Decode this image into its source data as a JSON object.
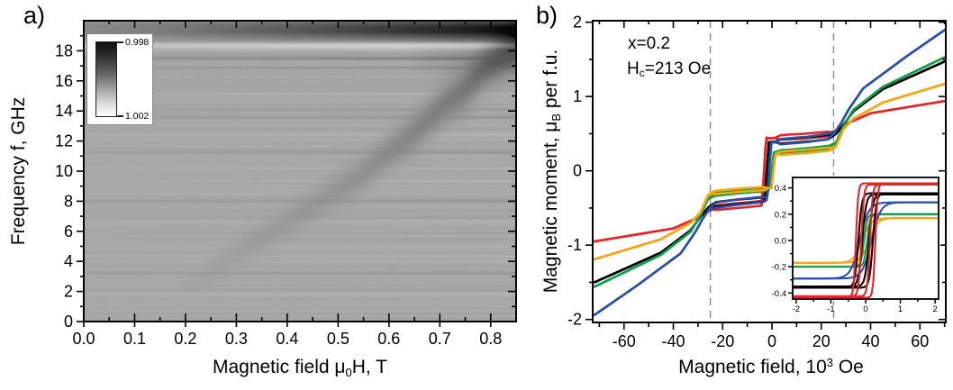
{
  "figure": {
    "background": "#ffffff"
  },
  "chart_data": [
    {
      "id": "fmr-absorption-map",
      "type": "heatmap",
      "panel_label": "a)",
      "x_title": {
        "prefix": "Magnetic field μ",
        "sub": "0",
        "suffix": "H, T"
      },
      "y_title": "Frequency f, GHz",
      "x_range": [
        0,
        0.85
      ],
      "y_range": [
        0,
        20
      ],
      "x_ticks": {
        "values": [
          0,
          0.1,
          0.2,
          0.3,
          0.4,
          0.5,
          0.6,
          0.7,
          0.8
        ],
        "labels": [
          "0.0",
          "0.1",
          "0.2",
          "0.3",
          "0.4",
          "0.5",
          "0.6",
          "0.7",
          "0.8"
        ],
        "minor_step": 0.05
      },
      "y_ticks": {
        "values": [
          0,
          2,
          4,
          6,
          8,
          10,
          12,
          14,
          16,
          18
        ],
        "labels": [
          "0",
          "2",
          "4",
          "6",
          "8",
          "10",
          "12",
          "14",
          "16",
          "18"
        ],
        "minor_step": 1
      },
      "colorbar": {
        "top_label": "0.998",
        "bottom_label": "1.002",
        "dark_color": "#101010",
        "light_color": "#ffffff"
      },
      "base_gray": 168,
      "resonance_band": {
        "points_H_f": [
          [
            0.16,
            1.6
          ],
          [
            0.24,
            3.2
          ],
          [
            0.29,
            4.3
          ],
          [
            0.35,
            5.6
          ],
          [
            0.41,
            6.9
          ],
          [
            0.47,
            8.2
          ],
          [
            0.53,
            9.4
          ],
          [
            0.61,
            11.6
          ],
          [
            0.66,
            12.9
          ],
          [
            0.7,
            14.2
          ],
          [
            0.75,
            15.5
          ],
          [
            0.79,
            16.9
          ],
          [
            0.85,
            18.4
          ]
        ],
        "amplitude": [
          [
            0.18,
            0
          ],
          [
            0.28,
            9
          ],
          [
            0.38,
            13
          ],
          [
            0.48,
            18
          ],
          [
            0.58,
            27
          ],
          [
            0.68,
            38
          ],
          [
            0.78,
            48
          ],
          [
            0.85,
            52
          ]
        ],
        "sigma_ghz": [
          [
            0.2,
            0.55
          ],
          [
            0.5,
            0.75
          ],
          [
            0.85,
            0.95
          ]
        ]
      },
      "top_band": {
        "f_center": 19.45,
        "sigma_ghz": 0.5,
        "max_dark": 150
      },
      "right_merge": {
        "f_center": 17.5,
        "sigma_ghz": 0.8,
        "x_start": 0.74,
        "amp": 34
      },
      "named_stripes": [
        {
          "f": 18.4,
          "amp": 55,
          "sigma": 0.13
        },
        {
          "f": 18.15,
          "amp": 16,
          "sigma": 0.1
        },
        {
          "f": 17.55,
          "amp": -24,
          "sigma": 0.09
        },
        {
          "f": 16.95,
          "amp": -14,
          "sigma": 0.08
        },
        {
          "f": 16.3,
          "amp": 10,
          "sigma": 0.08
        },
        {
          "f": 15.15,
          "amp": 12,
          "sigma": 0.08
        },
        {
          "f": 14.1,
          "amp": -10,
          "sigma": 0.07
        },
        {
          "f": 13.6,
          "amp": -12,
          "sigma": 0.08
        },
        {
          "f": 12.45,
          "amp": 14,
          "sigma": 0.08
        },
        {
          "f": 11.3,
          "amp": -15,
          "sigma": 0.08
        },
        {
          "f": 10.2,
          "amp": 8,
          "sigma": 0.07
        },
        {
          "f": 9.35,
          "amp": 10,
          "sigma": 0.07
        },
        {
          "f": 8.05,
          "amp": -11,
          "sigma": 0.07
        },
        {
          "f": 6.7,
          "amp": 6,
          "sigma": 0.07
        },
        {
          "f": 5.5,
          "amp": -9,
          "sigma": 0.07
        },
        {
          "f": 4.4,
          "amp": 5,
          "sigma": 0.06
        },
        {
          "f": 3.25,
          "amp": -13,
          "sigma": 0.07
        },
        {
          "f": 2.2,
          "amp": -6,
          "sigma": 0.06
        }
      ],
      "noise": {
        "seed": 7,
        "row_amp": 5,
        "strong_prob": 0.18,
        "strong_amp": 14
      }
    },
    {
      "id": "hysteresis-loops",
      "type": "line",
      "panel_label": "b)",
      "x_title": {
        "prefix": "Magnetic field, 10",
        "sup": "3",
        "suffix": " Oe"
      },
      "y_title": {
        "prefix": "Magnetic moment, μ",
        "sub": "B",
        "suffix": " per f.u."
      },
      "annotations": [
        {
          "text": "x=0.2"
        },
        {
          "prefix": "H",
          "sub": "c",
          "suffix": "=213 Oe"
        }
      ],
      "x_range": [
        -72.7,
        70.5
      ],
      "y_range": [
        -2.04,
        2.02
      ],
      "x_ticks": {
        "values": [
          -60,
          -40,
          -20,
          0,
          20,
          40,
          60
        ],
        "labels": [
          "-60",
          "-40",
          "-20",
          "0",
          "20",
          "40",
          "60"
        ],
        "minor_step": 10
      },
      "y_ticks": {
        "values": [
          -2,
          -1,
          0,
          1,
          2
        ],
        "labels": [
          "-2",
          "-1",
          "0",
          "1",
          "2"
        ],
        "minor_step": 0.5
      },
      "dashed_lines_x": [
        -25,
        25
      ],
      "dashed_color": "#8a8a8a",
      "series": [
        {
          "name": "red",
          "color": "#e4232a",
          "opening": 0.032,
          "knots": [
            [
              -72,
              -0.95
            ],
            [
              -40,
              -0.775
            ],
            [
              -30,
              -0.63
            ],
            [
              -27,
              -0.56
            ],
            [
              -24,
              -0.5
            ],
            [
              -15,
              -0.47
            ],
            [
              -8,
              -0.45
            ],
            [
              -4.0,
              -0.435
            ],
            [
              -2.4,
              0.435
            ],
            [
              4,
              0.45
            ],
            [
              12,
              0.465
            ],
            [
              20,
              0.487
            ],
            [
              24,
              0.5
            ],
            [
              27,
              0.56
            ],
            [
              30,
              0.63
            ],
            [
              40,
              0.775
            ],
            [
              72,
              0.95
            ]
          ]
        },
        {
          "name": "black",
          "color": "#000000",
          "opening": 0.03,
          "knots": [
            [
              -72,
              -1.5
            ],
            [
              -45,
              -1.1
            ],
            [
              -33,
              -0.8
            ],
            [
              -29,
              -0.62
            ],
            [
              -26,
              -0.5
            ],
            [
              -23,
              -0.452
            ],
            [
              -15,
              -0.42
            ],
            [
              -8,
              -0.4
            ],
            [
              -2.9,
              -0.385
            ],
            [
              -1.3,
              0.385
            ],
            [
              5,
              0.4
            ],
            [
              15,
              0.425
            ],
            [
              23,
              0.455
            ],
            [
              26,
              0.5
            ],
            [
              29,
              0.62
            ],
            [
              33,
              0.8
            ],
            [
              45,
              1.1
            ],
            [
              72,
              1.5
            ]
          ]
        },
        {
          "name": "green",
          "color": "#0fa04a",
          "opening": 0.022,
          "knots": [
            [
              -72,
              -1.56
            ],
            [
              -45,
              -1.13
            ],
            [
              -33,
              -0.82
            ],
            [
              -29,
              -0.6
            ],
            [
              -26,
              -0.38
            ],
            [
              -23,
              -0.315
            ],
            [
              -15,
              -0.285
            ],
            [
              -8,
              -0.265
            ],
            [
              -0.9,
              -0.25
            ],
            [
              0.7,
              0.25
            ],
            [
              8,
              0.265
            ],
            [
              15,
              0.285
            ],
            [
              23,
              0.315
            ],
            [
              26,
              0.38
            ],
            [
              29,
              0.6
            ],
            [
              33,
              0.82
            ],
            [
              45,
              1.13
            ],
            [
              72,
              1.56
            ]
          ]
        },
        {
          "name": "blue",
          "color": "#2a4fa4",
          "opening": 0.036,
          "knots": [
            [
              -72,
              -1.94
            ],
            [
              -55,
              -1.55
            ],
            [
              -37,
              -1.11
            ],
            [
              -31,
              -0.82
            ],
            [
              -28,
              -0.64
            ],
            [
              -25.5,
              -0.52
            ],
            [
              -23,
              -0.465
            ],
            [
              -15,
              -0.425
            ],
            [
              -8,
              -0.4
            ],
            [
              -1.9,
              -0.38
            ],
            [
              -0.3,
              0.38
            ],
            [
              6,
              0.4
            ],
            [
              15,
              0.425
            ],
            [
              23,
              0.465
            ],
            [
              25.5,
              0.52
            ],
            [
              28,
              0.64
            ],
            [
              31,
              0.82
            ],
            [
              37,
              1.11
            ],
            [
              55,
              1.55
            ],
            [
              72,
              1.94
            ]
          ]
        },
        {
          "name": "orange",
          "color": "#f5a515",
          "opening": 0.022,
          "knots": [
            [
              -72,
              -1.19
            ],
            [
              -45,
              -0.92
            ],
            [
              -33,
              -0.7
            ],
            [
              -29,
              -0.56
            ],
            [
              -26,
              -0.33
            ],
            [
              -24,
              -0.295
            ],
            [
              -15,
              -0.265
            ],
            [
              -8,
              -0.248
            ],
            [
              -0.2,
              -0.23
            ],
            [
              1.4,
              0.23
            ],
            [
              8,
              0.248
            ],
            [
              15,
              0.265
            ],
            [
              24,
              0.295
            ],
            [
              26,
              0.33
            ],
            [
              29,
              0.56
            ],
            [
              33,
              0.7
            ],
            [
              45,
              0.92
            ],
            [
              72,
              1.19
            ]
          ]
        }
      ],
      "inset": {
        "x_range": [
          -2.1,
          2.1
        ],
        "y_range": [
          -0.446,
          0.48
        ],
        "x_ticks": {
          "values": [
            -2,
            -1,
            0,
            1,
            2
          ],
          "labels": [
            "-2",
            "-1",
            "0",
            "1",
            "2"
          ],
          "minor_step": 0.5
        },
        "y_ticks": {
          "values": [
            0.4,
            0.2,
            0.0,
            -0.2,
            -0.4
          ],
          "labels": [
            "0.4",
            "0.2",
            "0.0",
            "-0.2",
            "-0.4"
          ],
          "minor_step": 0.1
        },
        "loops": [
          {
            "name": "orange",
            "color": "#f5a515",
            "P": 0.17,
            "hc": 0.1,
            "w": 0.24
          },
          {
            "name": "green",
            "color": "#0fa04a",
            "P": 0.2,
            "hc": 0.045,
            "w": 0.09
          },
          {
            "name": "blue",
            "color": "#2a4fa4",
            "P": 0.29,
            "hc": 0.17,
            "w": 0.26
          },
          {
            "name": "black-outer",
            "color": "#000000",
            "P": 0.36,
            "hc": 0.21,
            "w": 0.1
          },
          {
            "name": "black-inner",
            "color": "#000000",
            "P": 0.35,
            "hc": 0.095,
            "w": 0.11
          },
          {
            "name": "red-outer",
            "color": "#e4232a",
            "P": 0.435,
            "hc": 0.28,
            "w": 0.065
          },
          {
            "name": "red-inner",
            "color": "#e4232a",
            "P": 0.425,
            "hc": 0.125,
            "w": 0.075
          }
        ]
      }
    }
  ]
}
